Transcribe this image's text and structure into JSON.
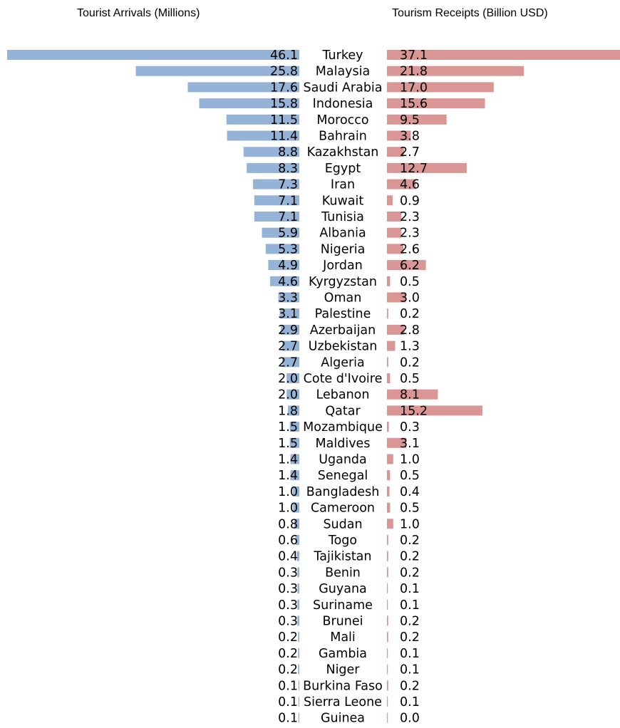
{
  "chart_data": {
    "type": "bar",
    "layout": "butterfly",
    "titles": {
      "left": "Tourist Arrivals (Millions)",
      "right": "Tourism Receipts (Billion USD)"
    },
    "colors": {
      "left": "#95b3d7",
      "right": "#da9694",
      "text": "#000000"
    },
    "categories": [
      "Turkey",
      "Malaysia",
      "Saudi Arabia",
      "Indonesia",
      "Morocco",
      "Bahrain",
      "Kazakhstan",
      "Egypt",
      "Iran",
      "Kuwait",
      "Tunisia",
      "Albania",
      "Nigeria",
      "Jordan",
      "Kyrgyzstan",
      "Oman",
      "Palestine",
      "Azerbaijan",
      "Uzbekistan",
      "Algeria",
      "Cote d'Ivoire",
      "Lebanon",
      "Qatar",
      "Mozambique",
      "Maldives",
      "Uganda",
      "Senegal",
      "Bangladesh",
      "Cameroon",
      "Sudan",
      "Togo",
      "Tajikistan",
      "Benin",
      "Guyana",
      "Suriname",
      "Brunei",
      "Mali",
      "Gambia",
      "Niger",
      "Burkina Faso",
      "Sierra Leone",
      "Guinea"
    ],
    "series": [
      {
        "name": "Tourist Arrivals (Millions)",
        "values": [
          46.1,
          25.8,
          17.6,
          15.8,
          11.5,
          11.4,
          8.8,
          8.3,
          7.3,
          7.1,
          7.1,
          5.9,
          5.3,
          4.9,
          4.6,
          3.3,
          3.1,
          2.9,
          2.7,
          2.7,
          2.0,
          2.0,
          1.8,
          1.5,
          1.5,
          1.4,
          1.4,
          1.0,
          1.0,
          0.8,
          0.6,
          0.4,
          0.3,
          0.3,
          0.3,
          0.3,
          0.2,
          0.2,
          0.2,
          0.1,
          0.1,
          0.1
        ]
      },
      {
        "name": "Tourism Receipts (Billion USD)",
        "values": [
          37.1,
          21.8,
          17.0,
          15.6,
          9.5,
          3.8,
          2.7,
          12.7,
          4.6,
          0.9,
          2.3,
          2.3,
          2.6,
          6.2,
          0.5,
          3.0,
          0.2,
          2.8,
          1.3,
          0.2,
          0.5,
          8.1,
          15.2,
          0.3,
          3.1,
          1.0,
          0.5,
          0.4,
          0.5,
          1.0,
          0.2,
          0.2,
          0.2,
          0.1,
          0.1,
          0.2,
          0.2,
          0.1,
          0.1,
          0.2,
          0.1,
          0.0
        ]
      }
    ],
    "value_labels": {
      "left": [
        "46.1",
        "25.8",
        "17.6",
        "15.8",
        "11.5",
        "11.4",
        "8.8",
        "8.3",
        "7.3",
        "7.1",
        "7.1",
        "5.9",
        "5.3",
        "4.9",
        "4.6",
        "3.3",
        "3.1",
        "2.9",
        "2.7",
        "2.7",
        "2.0",
        "2.0",
        "1.8",
        "1.5",
        "1.5",
        "1.4",
        "1.4",
        "1.0",
        "1.0",
        "0.8",
        "0.6",
        "0.4",
        "0.3",
        "0.3",
        "0.3",
        "0.3",
        "0.2",
        "0.2",
        "0.2",
        "0.1",
        "0.1",
        "0.1"
      ],
      "right": [
        "37.1",
        "21.8",
        "17.0",
        "15.6",
        "9.5",
        "3.8",
        "2.7",
        "12.7",
        "4.6",
        "0.9",
        "2.3",
        "2.3",
        "2.6",
        "6.2",
        "0.5",
        "3.0",
        "0.2",
        "2.8",
        "1.3",
        "0.2",
        "0.5",
        "8.1",
        "15.2",
        "0.3",
        "3.1",
        "1.0",
        "0.5",
        "0.4",
        "0.5",
        "1.0",
        "0.2",
        "0.2",
        "0.2",
        "0.1",
        "0.1",
        "0.2",
        "0.2",
        "0.1",
        "0.1",
        "0.2",
        "0.1",
        "0.0"
      ]
    },
    "grid": false,
    "legend": "none"
  }
}
